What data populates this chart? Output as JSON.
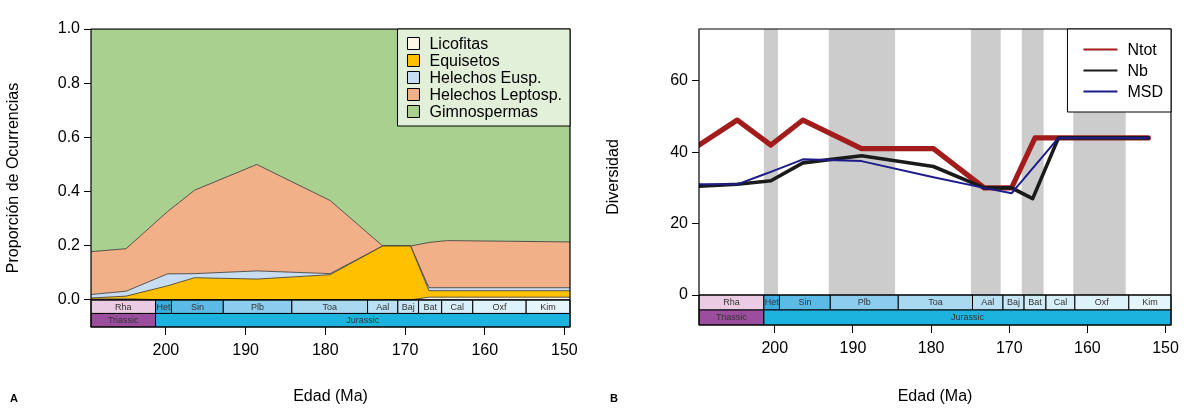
{
  "chart_data": [
    {
      "type": "area",
      "stacked": true,
      "xlabel": "Edad (Ma)",
      "ylabel": "Proporción de Ocurrencias",
      "x": [
        209.4,
        205.0,
        199.8,
        196.4,
        188.6,
        179.4,
        172.8,
        169.3,
        167.0,
        164.7,
        149.3
      ],
      "xlim": [
        209.4,
        149.3
      ],
      "xticks": [
        200,
        190,
        180,
        170,
        160,
        150
      ],
      "ylim": [
        -0.1,
        1.0
      ],
      "yticks": [
        {
          "value": 0,
          "label": "0.0"
        },
        {
          "value": 0.2,
          "label": "0.2"
        },
        {
          "value": 0.4,
          "label": "0.4"
        },
        {
          "value": 0.6,
          "label": "0.6"
        },
        {
          "value": 0.8,
          "label": "0.8"
        },
        {
          "value": 1,
          "label": "1.0"
        }
      ],
      "legend": "top right",
      "series": [
        {
          "name": "Licofitas",
          "color": "#fdf8e6",
          "values": [
            0.003,
            0.004,
            0,
            0,
            0,
            0,
            0,
            0,
            0.01,
            0.01,
            0.01
          ]
        },
        {
          "name": "Equisetos",
          "color": "#ffc000",
          "values": [
            0.004,
            0.01,
            0.052,
            0.082,
            0.077,
            0.093,
            0.199,
            0.199,
            0.024,
            0.024,
            0.024
          ]
        },
        {
          "name": "Helechos Eusp.",
          "color": "#c9ddf2",
          "values": [
            0.013,
            0.018,
            0.044,
            0.015,
            0.03,
            0.004,
            0,
            0,
            0.011,
            0.011,
            0.011
          ]
        },
        {
          "name": "Helechos Leptosp.",
          "color": "#f2b088",
          "values": [
            0.158,
            0.157,
            0.23,
            0.308,
            0.393,
            0.27,
            0,
            0,
            0.167,
            0.174,
            0.169
          ]
        },
        {
          "name": "Gimnospermas",
          "color": "#a9d08e",
          "values": [
            0.822,
            0.811,
            0.674,
            0.595,
            0.5,
            0.633,
            0.801,
            0.801,
            0.788,
            0.781,
            0.786
          ]
        }
      ],
      "bands": [
        {
          "axis": "x",
          "from": 209.4,
          "to": 201.3,
          "label": "Rha",
          "color": "#ebcbe3"
        },
        {
          "axis": "x",
          "from": 201.3,
          "to": 199.3,
          "label": "Het",
          "color": "#3aaedf"
        },
        {
          "axis": "x",
          "from": 199.3,
          "to": 192.8,
          "label": "Sin",
          "color": "#5cbbe6"
        },
        {
          "axis": "x",
          "from": 192.8,
          "to": 184.2,
          "label": "Plb",
          "color": "#8ccdef"
        },
        {
          "axis": "x",
          "from": 184.2,
          "to": 174.7,
          "label": "Toa",
          "color": "#a9d9f1"
        },
        {
          "axis": "x",
          "from": 174.7,
          "to": 170.9,
          "label": "Aal",
          "color": "#b9e0f4"
        },
        {
          "axis": "x",
          "from": 170.9,
          "to": 168.3,
          "label": "Baj",
          "color": "#c6e7f7"
        },
        {
          "axis": "x",
          "from": 168.3,
          "to": 165.4,
          "label": "Bat",
          "color": "#cfebf8"
        },
        {
          "axis": "x",
          "from": 165.4,
          "to": 161.5,
          "label": "Cal",
          "color": "#d7effa"
        },
        {
          "axis": "x",
          "from": 161.5,
          "to": 154.8,
          "label": "Oxf",
          "color": "#def2fb"
        },
        {
          "axis": "x",
          "from": 154.8,
          "to": 149.3,
          "label": "Kim",
          "color": "#e5f5fc"
        },
        {
          "axis": "x",
          "from": 209.4,
          "to": 201.3,
          "label": "Triassic",
          "color": "#9a4e9d"
        },
        {
          "axis": "x",
          "from": 201.3,
          "to": 149.3,
          "label": "Jurassic",
          "color": "#1cb3de"
        }
      ],
      "annotations": [
        "A"
      ]
    },
    {
      "type": "line",
      "xlabel": "Edad (Ma)",
      "ylabel": "Diversidad",
      "xlim": [
        209.7,
        149.3
      ],
      "xticks": [
        200,
        190,
        180,
        170,
        160,
        150
      ],
      "ylim": [
        -8.4,
        74.5
      ],
      "yticks": [
        0,
        20,
        40,
        60
      ],
      "legend": "top right",
      "series": [
        {
          "name": "Ntot",
          "color": "#a31c1c",
          "x": [
            209.7,
            204.8,
            200.5,
            196.4,
            188.9,
            179.7,
            173.2,
            169.7,
            166.7,
            163.7,
            152.2
          ],
          "values": [
            42,
            49,
            42,
            49,
            41,
            41,
            30,
            30,
            44,
            44,
            44
          ]
        },
        {
          "name": "Nb",
          "color": "#1a1a1a",
          "x": [
            209.7,
            204.8,
            200.5,
            196.4,
            188.9,
            179.7,
            173.2,
            169.7,
            167.0,
            163.7,
            152.2
          ],
          "values": [
            30.5,
            31,
            32,
            37,
            39,
            36,
            30,
            30,
            27,
            44,
            44
          ]
        },
        {
          "name": "MSD",
          "color": "#1c1c8c",
          "x": [
            209.7,
            204.8,
            200.5,
            196.4,
            188.9,
            179.7,
            173.2,
            169.7,
            163.7,
            152.2
          ],
          "values": [
            31,
            31,
            34.5,
            38,
            37.5,
            33,
            30,
            28.5,
            44,
            44
          ]
        }
      ],
      "bands": [
        {
          "axis": "x",
          "from": 201.4,
          "to": 199.6,
          "color": "#cccccc"
        },
        {
          "axis": "x",
          "from": 193.1,
          "to": 184.6,
          "color": "#cccccc"
        },
        {
          "axis": "x",
          "from": 174.9,
          "to": 171.1,
          "color": "#cccccc"
        },
        {
          "axis": "x",
          "from": 168.4,
          "to": 165.6,
          "color": "#cccccc"
        },
        {
          "axis": "x",
          "from": 161.8,
          "to": 155.1,
          "color": "#cccccc"
        },
        {
          "axis": "x",
          "from": 209.7,
          "to": 201.4,
          "label": "Rha",
          "color": "#ebcbe3"
        },
        {
          "axis": "x",
          "from": 201.4,
          "to": 199.4,
          "label": "Het",
          "color": "#3aaedf"
        },
        {
          "axis": "x",
          "from": 199.4,
          "to": 192.9,
          "label": "Sin",
          "color": "#5cbbe6"
        },
        {
          "axis": "x",
          "from": 192.9,
          "to": 184.2,
          "label": "Plb",
          "color": "#8ccdef"
        },
        {
          "axis": "x",
          "from": 184.2,
          "to": 174.7,
          "label": "Toa",
          "color": "#a9d9f1"
        },
        {
          "axis": "x",
          "from": 174.7,
          "to": 170.8,
          "label": "Aal",
          "color": "#b9e0f4"
        },
        {
          "axis": "x",
          "from": 170.8,
          "to": 168.1,
          "label": "Baj",
          "color": "#c6e7f7"
        },
        {
          "axis": "x",
          "from": 168.1,
          "to": 165.3,
          "label": "Bat",
          "color": "#cfebf8"
        },
        {
          "axis": "x",
          "from": 165.3,
          "to": 161.6,
          "label": "Cal",
          "color": "#d7effa"
        },
        {
          "axis": "x",
          "from": 161.6,
          "to": 154.7,
          "label": "Oxf",
          "color": "#def2fb"
        },
        {
          "axis": "x",
          "from": 154.7,
          "to": 149.3,
          "label": "Kim",
          "color": "#e5f5fc"
        },
        {
          "axis": "x",
          "from": 209.7,
          "to": 201.4,
          "label": "Triassic",
          "color": "#9a4e9d"
        },
        {
          "axis": "x",
          "from": 201.4,
          "to": 149.3,
          "label": "Jurassic",
          "color": "#1cb3de"
        }
      ],
      "annotations": [
        "B"
      ]
    }
  ]
}
